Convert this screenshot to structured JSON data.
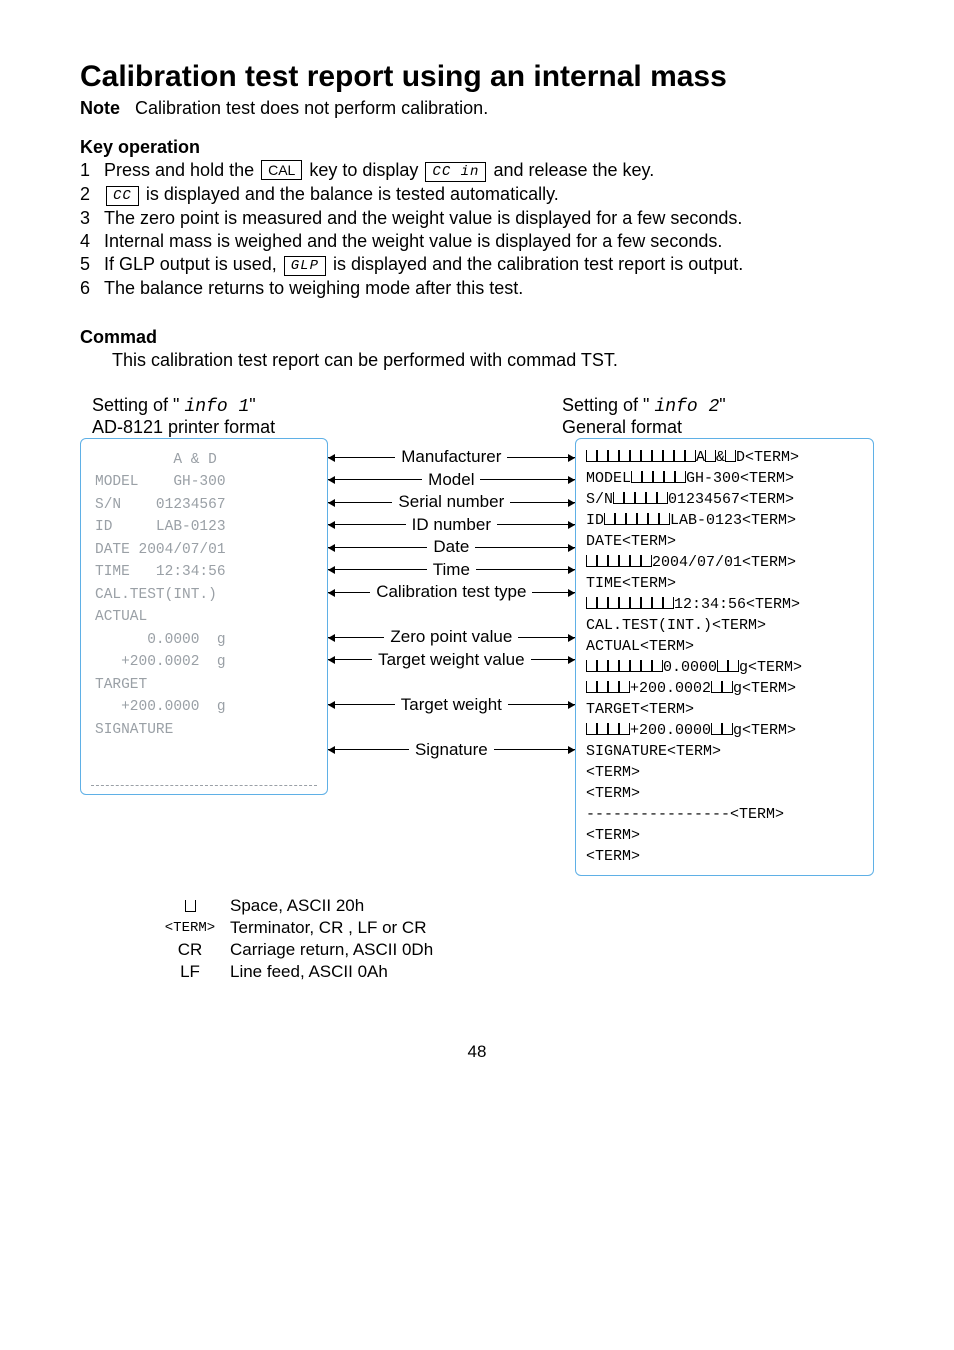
{
  "title": "Calibration test report using an internal mass",
  "note": {
    "label": "Note",
    "text": "Calibration test does not perform calibration."
  },
  "keyop": {
    "heading": "Key operation",
    "items": [
      {
        "n": "1",
        "pre": "Press and hold the ",
        "key1": "CAL",
        "mid": " key to display ",
        "key2": "CC in",
        "post": " and release the key."
      },
      {
        "n": "2",
        "key1": "CC",
        "post": " is displayed and the balance is tested automatically."
      },
      {
        "n": "3",
        "text": "The zero point is measured and the weight value is displayed for a few seconds."
      },
      {
        "n": "4",
        "text": "Internal mass is weighed and the weight value is displayed for a few seconds."
      },
      {
        "n": "5",
        "pre": "If GLP output is used, ",
        "key1": "GLP",
        "post": " is displayed and the calibration test report is output."
      },
      {
        "n": "6",
        "text": "The balance returns to weighing mode after this test."
      }
    ]
  },
  "commad": {
    "heading": "Commad",
    "text": "This calibration test report can be performed with commad TST."
  },
  "diagram": {
    "left_header": {
      "setting": "Setting of \" ",
      "code": "info 1",
      "close": "\"",
      "sub": "AD-8121 printer format"
    },
    "right_header": {
      "setting": "Setting of \" ",
      "code": "info 2",
      "close": "\"",
      "sub": "General format"
    },
    "printer_lines": [
      "         A & D",
      "MODEL    GH-300",
      "S/N    01234567",
      "ID     LAB-0123",
      "DATE 2004/07/01",
      "TIME   12:34:56",
      "CAL.TEST(INT.)",
      "ACTUAL",
      "      0.0000  g",
      "   +200.0002  g",
      "TARGET",
      "   +200.0000  g",
      "SIGNATURE",
      "",
      ""
    ],
    "mid_labels": [
      "Manufacturer",
      "Model",
      "Serial number",
      "ID number",
      "Date",
      "Time",
      "Calibration test type",
      "",
      "Zero point value",
      "Target weight value",
      "",
      "Target weight",
      "",
      "Signature"
    ],
    "general_lines": [
      {
        "sp": 10,
        "t": "A␣&␣D<TERM>"
      },
      {
        "pre": "MODEL",
        "sp": 5,
        "t": "GH-300<TERM>"
      },
      {
        "pre": "S/N",
        "sp": 5,
        "t": "01234567<TERM>"
      },
      {
        "pre": "ID",
        "sp": 6,
        "t": "LAB-0123<TERM>"
      },
      {
        "pre": "DATE<TERM>",
        "sp": 0,
        "t": ""
      },
      {
        "sp": 6,
        "t": "2004/07/01<TERM>"
      },
      {
        "pre": "TIME<TERM>",
        "sp": 0,
        "t": ""
      },
      {
        "sp": 8,
        "t": "12:34:56<TERM>"
      },
      {
        "pre": "CAL.TEST(INT.)<TERM>",
        "sp": 0,
        "t": ""
      },
      {
        "pre": "ACTUAL<TERM>",
        "sp": 0,
        "t": ""
      },
      {
        "sp": 7,
        "t": "0.0000␣␣g<TERM>"
      },
      {
        "sp": 4,
        "t": "+200.0002␣␣g<TERM>"
      },
      {
        "pre": "TARGET<TERM>",
        "sp": 0,
        "t": ""
      },
      {
        "sp": 4,
        "t": "+200.0000␣␣g<TERM>"
      },
      {
        "pre": "SIGNATURE<TERM>",
        "sp": 0,
        "t": ""
      },
      {
        "pre": "<TERM>",
        "sp": 0,
        "t": ""
      },
      {
        "pre": "<TERM>",
        "sp": 0,
        "t": ""
      },
      {
        "pre": "----------------<TERM>",
        "sp": 0,
        "t": ""
      },
      {
        "pre": "<TERM>",
        "sp": 0,
        "t": ""
      },
      {
        "pre": "<TERM>",
        "sp": 0,
        "t": ""
      }
    ]
  },
  "legend": [
    {
      "key_type": "spc",
      "text": "Space, ASCII 20h"
    },
    {
      "key_type": "term",
      "key": "<TERM>",
      "text": "Terminator, CR , LF or CR"
    },
    {
      "key": "CR",
      "text": "Carriage return, ASCII 0Dh"
    },
    {
      "key": "LF",
      "text": "Line feed, ASCII 0Ah"
    }
  ],
  "pagenum": "48"
}
